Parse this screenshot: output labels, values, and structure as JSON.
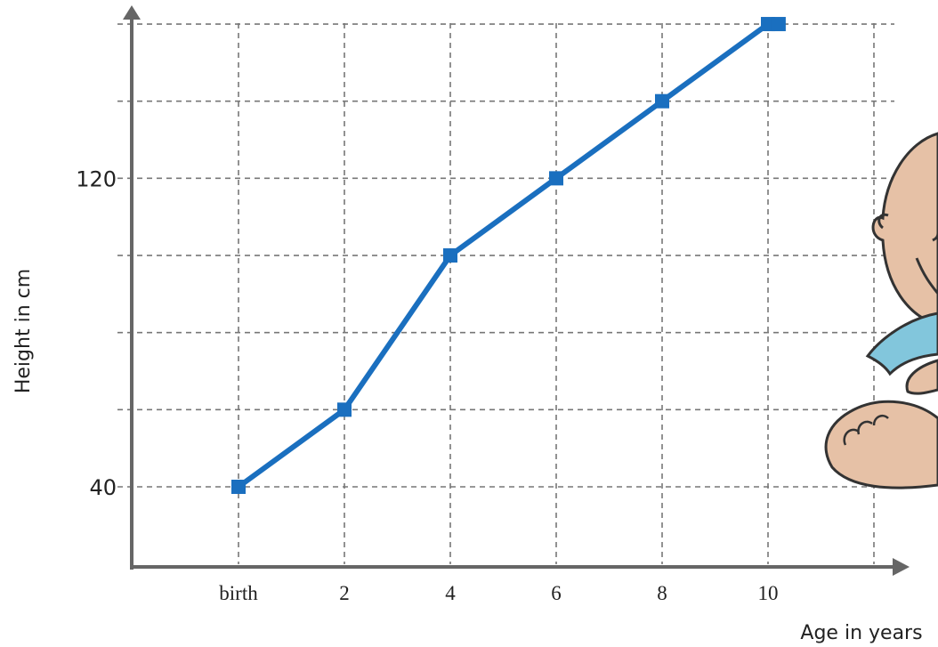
{
  "chart_data": {
    "type": "line",
    "title": "",
    "xlabel": "Age in years",
    "ylabel": "Height in cm",
    "categories": [
      "birth",
      "2",
      "4",
      "6",
      "8",
      "10"
    ],
    "x_values": [
      0,
      2,
      4,
      6,
      8,
      10
    ],
    "y_tick_labels": [
      {
        "value": 40,
        "label": "40"
      },
      {
        "value": 120,
        "label": "120"
      }
    ],
    "y_gridlines": [
      40,
      60,
      80,
      100,
      120,
      140,
      160
    ],
    "ylim": [
      20,
      160
    ],
    "xlim": [
      -2,
      12
    ],
    "grid": true,
    "series": [
      {
        "values": [
          40,
          60,
          100,
          120,
          140,
          160
        ],
        "color": "#1a6fbf"
      }
    ],
    "extra_points": [
      {
        "x": 10.2,
        "y": 160
      }
    ],
    "colors": {
      "axis": "#666666",
      "grid": "#777777",
      "line": "#1a6fbf",
      "marker": "#1a6fbf"
    }
  },
  "illustration": {
    "icon": "baby-cartoon-icon"
  }
}
